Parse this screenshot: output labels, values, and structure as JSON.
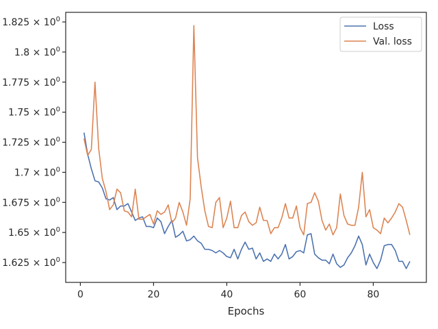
{
  "chart_data": {
    "type": "line",
    "title": "",
    "xlabel": "Epochs",
    "ylabel": "",
    "xlim": [
      -4,
      94.5
    ],
    "ylim": [
      1.6085,
      1.833
    ],
    "xticks": [
      0,
      20,
      40,
      60,
      80
    ],
    "yticks": [
      {
        "value": 1.625,
        "mantissa": "1.625"
      },
      {
        "value": 1.65,
        "mantissa": "1.65"
      },
      {
        "value": 1.675,
        "mantissa": "1.675"
      },
      {
        "value": 1.7,
        "mantissa": "1.7"
      },
      {
        "value": 1.725,
        "mantissa": "1.725"
      },
      {
        "value": 1.75,
        "mantissa": "1.75"
      },
      {
        "value": 1.775,
        "mantissa": "1.775"
      },
      {
        "value": 1.8,
        "mantissa": "1.8"
      },
      {
        "value": 1.825,
        "mantissa": "1.825"
      }
    ],
    "ytick_suffix": " × 10",
    "ytick_exponent": "0",
    "grid": false,
    "legend_position": "top-right",
    "x": [
      1,
      2,
      3,
      4,
      5,
      6,
      7,
      8,
      9,
      10,
      11,
      12,
      13,
      14,
      15,
      16,
      17,
      18,
      19,
      20,
      21,
      22,
      23,
      24,
      25,
      26,
      27,
      28,
      29,
      30,
      31,
      32,
      33,
      34,
      35,
      36,
      37,
      38,
      39,
      40,
      41,
      42,
      43,
      44,
      45,
      46,
      47,
      48,
      49,
      50,
      51,
      52,
      53,
      54,
      55,
      56,
      57,
      58,
      59,
      60,
      61,
      62,
      63,
      64,
      65,
      66,
      67,
      68,
      69,
      70,
      71,
      72,
      73,
      74,
      75,
      76,
      77,
      78,
      79,
      80,
      81,
      82,
      83,
      84,
      85,
      86,
      87,
      88,
      89,
      90
    ],
    "series": [
      {
        "name": "Loss",
        "color": "#4c72b0",
        "values": [
          1.733,
          1.715,
          1.703,
          1.693,
          1.692,
          1.687,
          1.678,
          1.677,
          1.679,
          1.669,
          1.672,
          1.672,
          1.674,
          1.667,
          1.66,
          1.662,
          1.663,
          1.655,
          1.655,
          1.654,
          1.662,
          1.659,
          1.649,
          1.655,
          1.66,
          1.646,
          1.648,
          1.651,
          1.643,
          1.644,
          1.647,
          1.643,
          1.641,
          1.636,
          1.636,
          1.635,
          1.633,
          1.635,
          1.633,
          1.63,
          1.629,
          1.636,
          1.628,
          1.636,
          1.642,
          1.636,
          1.637,
          1.628,
          1.633,
          1.626,
          1.628,
          1.626,
          1.632,
          1.628,
          1.632,
          1.64,
          1.628,
          1.63,
          1.634,
          1.635,
          1.633,
          1.648,
          1.649,
          1.632,
          1.629,
          1.627,
          1.627,
          1.624,
          1.632,
          1.624,
          1.621,
          1.623,
          1.629,
          1.633,
          1.639,
          1.647,
          1.64,
          1.623,
          1.632,
          1.625,
          1.62,
          1.627,
          1.639,
          1.64,
          1.64,
          1.635,
          1.626,
          1.626,
          1.62,
          1.626
        ]
      },
      {
        "name": "Val. loss",
        "color": "#dd8452",
        "values": [
          1.728,
          1.714,
          1.719,
          1.775,
          1.72,
          1.695,
          1.684,
          1.669,
          1.673,
          1.686,
          1.683,
          1.668,
          1.667,
          1.663,
          1.686,
          1.661,
          1.661,
          1.663,
          1.665,
          1.657,
          1.668,
          1.665,
          1.667,
          1.673,
          1.658,
          1.662,
          1.675,
          1.667,
          1.656,
          1.678,
          1.822,
          1.712,
          1.688,
          1.668,
          1.655,
          1.654,
          1.675,
          1.679,
          1.654,
          1.662,
          1.676,
          1.654,
          1.654,
          1.664,
          1.667,
          1.659,
          1.656,
          1.658,
          1.671,
          1.66,
          1.66,
          1.649,
          1.654,
          1.654,
          1.662,
          1.674,
          1.662,
          1.662,
          1.672,
          1.654,
          1.648,
          1.674,
          1.675,
          1.683,
          1.676,
          1.66,
          1.652,
          1.657,
          1.648,
          1.654,
          1.682,
          1.664,
          1.657,
          1.656,
          1.656,
          1.671,
          1.7,
          1.663,
          1.669,
          1.654,
          1.652,
          1.649,
          1.662,
          1.658,
          1.662,
          1.667,
          1.674,
          1.671,
          1.66,
          1.648
        ]
      }
    ]
  }
}
